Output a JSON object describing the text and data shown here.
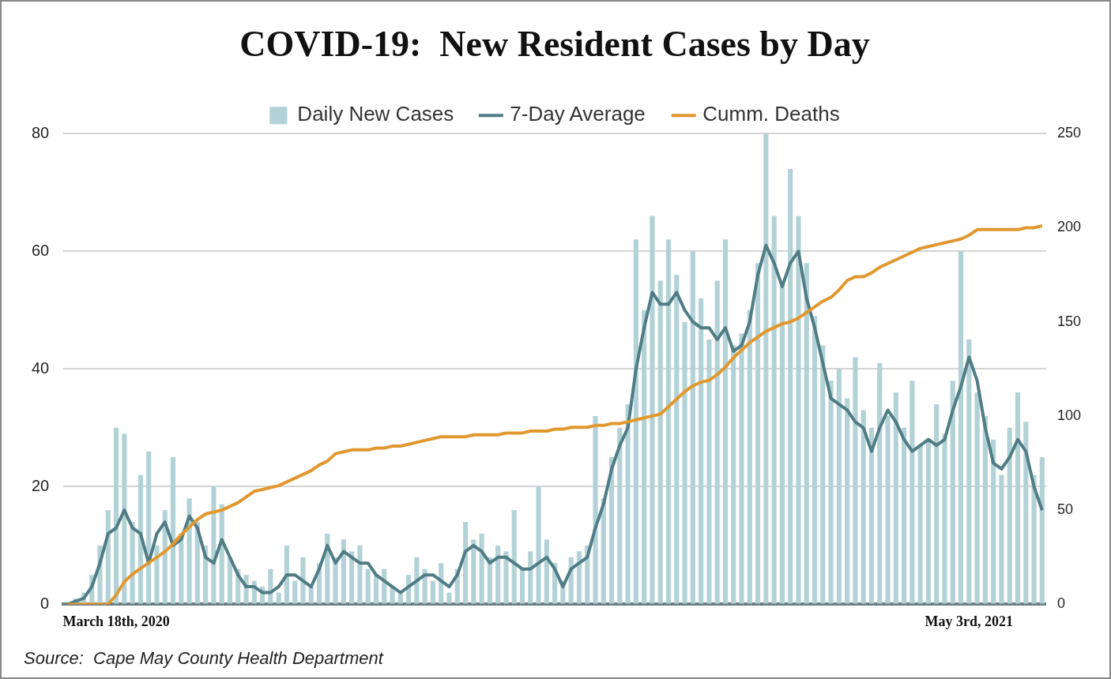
{
  "chart_data": {
    "type": "bar",
    "title": "COVID-19:  New Resident Cases by Day",
    "legend": "top",
    "grid": "y",
    "categories": [
      null,
      null,
      null,
      null,
      null,
      null,
      "March 18th, 2020",
      null,
      null,
      null,
      null,
      null,
      null,
      null,
      null,
      null,
      null,
      null,
      null,
      null,
      null,
      null,
      null,
      null,
      null,
      null,
      null,
      null,
      null,
      null,
      null,
      null,
      null,
      null,
      null,
      null,
      null,
      null,
      null,
      null,
      null,
      null,
      null,
      null,
      null,
      null,
      null,
      null,
      null,
      null,
      null,
      null,
      null,
      null,
      null,
      null,
      null,
      null,
      null,
      null,
      null,
      null,
      null,
      null,
      null,
      null,
      null,
      null,
      null,
      null,
      null,
      null,
      null,
      null,
      null,
      null,
      null,
      null,
      null,
      null,
      null,
      null,
      null,
      null,
      null,
      null,
      null,
      null,
      null,
      null,
      null,
      null,
      null,
      null,
      null,
      null,
      null,
      null,
      null,
      null,
      null,
      null,
      null,
      null,
      null,
      null,
      null,
      null,
      null,
      null,
      null,
      "May 3rd, 2021",
      null,
      null,
      null,
      null,
      null,
      null,
      null,
      null,
      null
    ],
    "ylim": [
      0,
      80
    ],
    "yticks": [
      0,
      20,
      40,
      60,
      80
    ],
    "y2lim": [
      0,
      250
    ],
    "y2ticks": [
      0,
      50,
      100,
      150,
      200,
      250
    ],
    "series": [
      {
        "name": "Daily New Cases",
        "color": "#b3d2d7",
        "values": [
          0,
          1,
          2,
          5,
          10,
          16,
          30,
          29,
          14,
          22,
          26,
          10,
          16,
          25,
          12,
          18,
          14,
          10,
          20,
          17,
          8,
          6,
          5,
          4,
          3,
          6,
          2,
          10,
          4,
          8,
          3,
          7,
          12,
          8,
          11,
          9,
          10,
          6,
          5,
          6,
          3,
          2,
          5,
          8,
          6,
          4,
          7,
          2,
          6,
          14,
          11,
          12,
          8,
          10,
          9,
          16,
          6,
          9,
          20,
          11,
          7,
          4,
          8,
          9,
          10,
          32,
          18,
          25,
          30,
          34,
          62,
          50,
          66,
          55,
          62,
          56,
          48,
          60,
          52,
          45,
          55,
          62,
          44,
          46,
          50,
          58,
          80,
          66,
          55,
          74,
          66,
          58,
          49,
          44,
          38,
          40,
          35,
          42,
          33,
          30,
          41,
          32,
          36,
          30,
          38,
          27,
          28,
          34,
          29,
          38,
          60,
          45,
          36,
          32,
          28,
          22,
          30,
          36,
          31,
          22,
          25
        ]
      },
      {
        "name": "7-Day Average",
        "type": "line",
        "color": "#4f7c85",
        "values": [
          0,
          0.5,
          1,
          3,
          7,
          12,
          13,
          16,
          13,
          12,
          7,
          12,
          14,
          10,
          11,
          15,
          13,
          8,
          7,
          11,
          8,
          5,
          3,
          3,
          2,
          2,
          3,
          5,
          5,
          4,
          3,
          6,
          10,
          7,
          9,
          8,
          7,
          7,
          5,
          4,
          3,
          2,
          3,
          4,
          5,
          5,
          4,
          3,
          5,
          9,
          10,
          9,
          7,
          8,
          8,
          7,
          6,
          6,
          7,
          8,
          6,
          3,
          6,
          7,
          8,
          13,
          17,
          23,
          27,
          30,
          40,
          47,
          53,
          51,
          51,
          53,
          50,
          48,
          47,
          47,
          45,
          47,
          43,
          44,
          48,
          56,
          61,
          58,
          54,
          58,
          60,
          52,
          47,
          41,
          35,
          34,
          33,
          31,
          30,
          26,
          30,
          33,
          31,
          28,
          26,
          27,
          28,
          27,
          28,
          33,
          37,
          42,
          38,
          30,
          24,
          23,
          25,
          28,
          26,
          20,
          16
        ]
      },
      {
        "name": "Cumm. Deaths",
        "type": "line",
        "axis": "y2",
        "color": "#e0982f",
        "values": [
          0,
          0,
          0,
          0,
          0,
          0,
          5,
          12,
          16,
          19,
          22,
          25,
          28,
          32,
          37,
          41,
          45,
          48,
          49,
          50,
          52,
          54,
          57,
          60,
          61,
          62,
          63,
          65,
          67,
          69,
          71,
          74,
          76,
          80,
          81,
          82,
          82,
          82,
          83,
          83,
          84,
          84,
          85,
          86,
          87,
          88,
          89,
          89,
          89,
          89,
          90,
          90,
          90,
          90,
          91,
          91,
          91,
          92,
          92,
          92,
          93,
          93,
          94,
          94,
          94,
          95,
          95,
          96,
          96,
          97,
          98,
          99,
          100,
          101,
          105,
          109,
          113,
          116,
          118,
          119,
          122,
          126,
          131,
          135,
          139,
          142,
          145,
          147,
          149,
          150,
          152,
          155,
          158,
          161,
          163,
          167,
          172,
          174,
          174,
          176,
          179,
          181,
          183,
          185,
          187,
          189,
          190,
          191,
          192,
          193,
          194,
          196,
          199,
          199,
          199,
          199,
          199,
          199,
          200,
          200,
          201
        ]
      }
    ],
    "annotations": [
      "Source:  Cape May County Health Department"
    ]
  }
}
